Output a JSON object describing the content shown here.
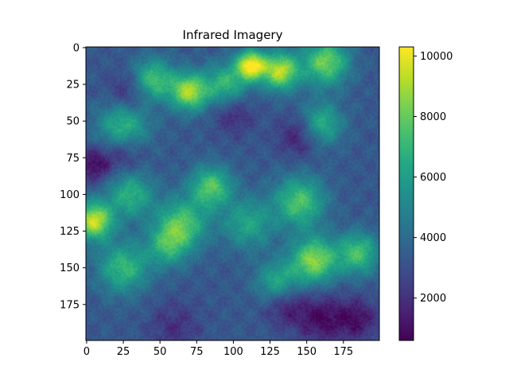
{
  "chart_data": {
    "type": "heatmap",
    "title": "Infrared Imagery",
    "xlabel": "",
    "ylabel": "",
    "grid": false,
    "xlim": [
      -0.5,
      199.5
    ],
    "ylim": [
      199.5,
      -0.5
    ],
    "x_ticks": [
      0,
      25,
      50,
      75,
      100,
      125,
      150,
      175
    ],
    "y_ticks": [
      0,
      25,
      50,
      75,
      100,
      125,
      150,
      175
    ],
    "colormap": "viridis",
    "colorbar": {
      "range": [
        600,
        10300
      ],
      "ticks": [
        2000,
        4000,
        6000,
        8000,
        10000
      ],
      "placement": "right"
    },
    "grid_size": [
      200,
      200
    ],
    "base_value": 3300,
    "hotspots": [
      {
        "x": 112,
        "y": 12,
        "value": 10200,
        "radius": 7
      },
      {
        "x": 132,
        "y": 16,
        "value": 9300,
        "radius": 9
      },
      {
        "x": 163,
        "y": 10,
        "value": 8200,
        "radius": 11
      },
      {
        "x": 70,
        "y": 30,
        "value": 9000,
        "radius": 9
      },
      {
        "x": 45,
        "y": 22,
        "value": 7600,
        "radius": 10
      },
      {
        "x": 95,
        "y": 25,
        "value": 7000,
        "radius": 10
      },
      {
        "x": 25,
        "y": 55,
        "value": 7300,
        "radius": 12
      },
      {
        "x": 160,
        "y": 52,
        "value": 6900,
        "radius": 10
      },
      {
        "x": 85,
        "y": 95,
        "value": 7700,
        "radius": 10
      },
      {
        "x": 145,
        "y": 105,
        "value": 7600,
        "radius": 12
      },
      {
        "x": 5,
        "y": 118,
        "value": 9600,
        "radius": 9
      },
      {
        "x": 30,
        "y": 100,
        "value": 6800,
        "radius": 11
      },
      {
        "x": 65,
        "y": 120,
        "value": 7500,
        "radius": 12
      },
      {
        "x": 110,
        "y": 120,
        "value": 6300,
        "radius": 12
      },
      {
        "x": 155,
        "y": 145,
        "value": 8600,
        "radius": 11
      },
      {
        "x": 185,
        "y": 140,
        "value": 7400,
        "radius": 10
      },
      {
        "x": 25,
        "y": 150,
        "value": 7100,
        "radius": 12
      },
      {
        "x": 55,
        "y": 135,
        "value": 6400,
        "radius": 10
      },
      {
        "x": 130,
        "y": 160,
        "value": 6600,
        "radius": 10
      }
    ],
    "coldspots": [
      {
        "x": 25,
        "y": 70,
        "value": 1200,
        "radius": 10
      },
      {
        "x": 5,
        "y": 80,
        "value": 900,
        "radius": 8
      },
      {
        "x": 30,
        "y": 30,
        "value": 1500,
        "radius": 10
      },
      {
        "x": 145,
        "y": 60,
        "value": 1300,
        "radius": 10
      },
      {
        "x": 160,
        "y": 185,
        "value": 1000,
        "radius": 12
      },
      {
        "x": 135,
        "y": 175,
        "value": 1400,
        "radius": 10
      },
      {
        "x": 185,
        "y": 185,
        "value": 1200,
        "radius": 10
      },
      {
        "x": 100,
        "y": 45,
        "value": 1800,
        "radius": 10
      },
      {
        "x": 60,
        "y": 190,
        "value": 2000,
        "radius": 12
      }
    ]
  }
}
